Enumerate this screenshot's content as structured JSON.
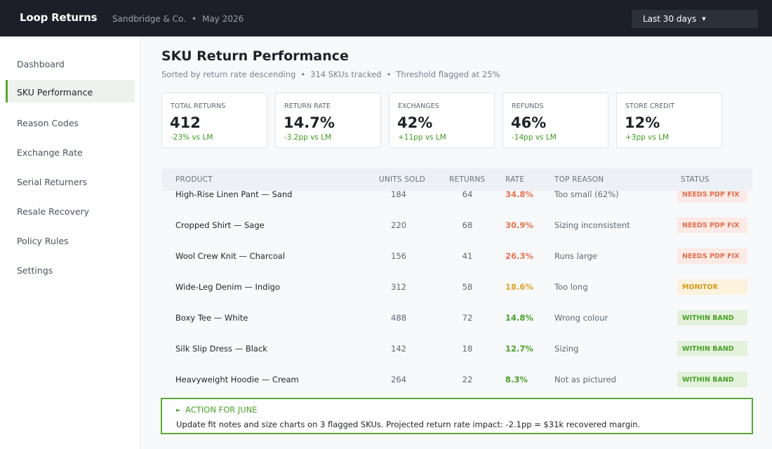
{
  "app": {
    "brand": "Loop Returns",
    "org": "Sandbridge & Co.",
    "separator": "•",
    "period": "May 2026",
    "range_label": "Last 30 days",
    "range_caret": "▼"
  },
  "sidebar": {
    "items": [
      {
        "label": "Dashboard"
      },
      {
        "label": "SKU Performance"
      },
      {
        "label": "Reason Codes"
      },
      {
        "label": "Exchange Rate"
      },
      {
        "label": "Serial Returners"
      },
      {
        "label": "Resale Recovery"
      },
      {
        "label": "Policy Rules"
      },
      {
        "label": "Settings"
      }
    ],
    "active": "SKU Performance"
  },
  "page": {
    "title": "SKU Return Performance",
    "subtitle_parts": [
      "Sorted by return rate descending",
      "314 SKUs tracked",
      "Threshold flagged at 25%"
    ],
    "separator": "•"
  },
  "kpis": [
    {
      "label": "TOTAL RETURNS",
      "value": "412",
      "delta": "-23% vs LM"
    },
    {
      "label": "RETURN RATE",
      "value": "14.7%",
      "delta": "-3.2pp vs LM"
    },
    {
      "label": "EXCHANGES",
      "value": "42%",
      "delta": "+11pp vs LM"
    },
    {
      "label": "REFUNDS",
      "value": "46%",
      "delta": "-14pp vs LM"
    },
    {
      "label": "STORE CREDIT",
      "value": "12%",
      "delta": "+3pp vs LM"
    }
  ],
  "table": {
    "columns": [
      "PRODUCT",
      "UNITS SOLD",
      "RETURNS",
      "RATE",
      "TOP REASON",
      "STATUS"
    ],
    "rows": [
      {
        "product": "High-Rise Linen Pant — Sand",
        "units": "184",
        "returns": "64",
        "rate": "34.8%",
        "reason": "Too small (62%)",
        "status": "NEEDS PDP FIX",
        "level": "red"
      },
      {
        "product": "Cropped Shirt — Sage",
        "units": "220",
        "returns": "68",
        "rate": "30.9%",
        "reason": "Sizing inconsistent",
        "status": "NEEDS PDP FIX",
        "level": "red"
      },
      {
        "product": "Wool Crew Knit — Charcoal",
        "units": "156",
        "returns": "41",
        "rate": "26.3%",
        "reason": "Runs large",
        "status": "NEEDS PDP FIX",
        "level": "red"
      },
      {
        "product": "Wide-Leg Denim — Indigo",
        "units": "312",
        "returns": "58",
        "rate": "18.6%",
        "reason": "Too long",
        "status": "MONITOR",
        "level": "amber"
      },
      {
        "product": "Boxy Tee — White",
        "units": "488",
        "returns": "72",
        "rate": "14.8%",
        "reason": "Wrong colour",
        "status": "WITHIN BAND",
        "level": "green"
      },
      {
        "product": "Silk Slip Dress — Black",
        "units": "142",
        "returns": "18",
        "rate": "12.7%",
        "reason": "Sizing",
        "status": "WITHIN BAND",
        "level": "green"
      },
      {
        "product": "Heavyweight Hoodie — Cream",
        "units": "264",
        "returns": "22",
        "rate": "8.3%",
        "reason": "Not as pictured",
        "status": "WITHIN BAND",
        "level": "green"
      }
    ]
  },
  "colors": {
    "accent": "#5aa832",
    "rate_red": "#e8734f",
    "rate_amber": "#e0a42a",
    "rate_green": "#49a12a"
  },
  "action": {
    "icon": "►",
    "title": "ACTION FOR JUNE",
    "body": "Update fit notes and size charts on 3 flagged SKUs. Projected return rate impact: -2.1pp = $31k recovered margin."
  }
}
